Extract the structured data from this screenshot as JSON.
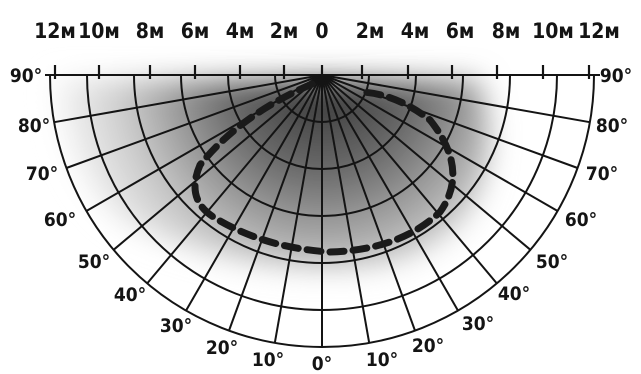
{
  "distance_labels": {
    "left": [
      "12м",
      "10м",
      "8м",
      "6м",
      "4м",
      "2м"
    ],
    "center": "0",
    "right": [
      "2м",
      "4м",
      "6м",
      "8м",
      "10м",
      "12м"
    ]
  },
  "angle_labels": {
    "left": [
      "90°",
      "80°",
      "70°",
      "60°",
      "50°",
      "40°",
      "30°",
      "20°",
      "10°"
    ],
    "bottom": "0°",
    "right": [
      "10°",
      "20°",
      "30°",
      "40°",
      "50°",
      "60°",
      "70°",
      "80°",
      "90°"
    ]
  },
  "colors": {
    "grid": "#141414",
    "detection_zone": "#1a1a1a",
    "shading_dark": "#3a3a3a",
    "background": "#ffffff"
  }
}
